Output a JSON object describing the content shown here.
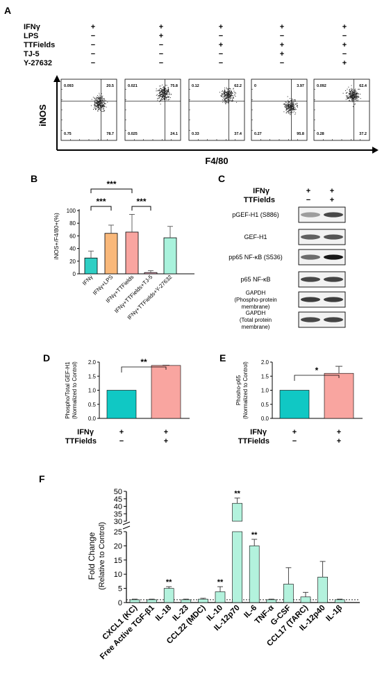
{
  "panels": {
    "A": {
      "label": "A",
      "treatments": [
        "IFNγ",
        "LPS",
        "TTFields",
        "TJ-5",
        "Y-27632"
      ],
      "signs": [
        [
          "+",
          "−",
          "−",
          "−",
          "−"
        ],
        [
          "+",
          "+",
          "−",
          "−",
          "−"
        ],
        [
          "+",
          "−",
          "+",
          "−",
          "−"
        ],
        [
          "+",
          "−",
          "+",
          "+",
          "−"
        ],
        [
          "+",
          "−",
          "+",
          "−",
          "+"
        ]
      ],
      "ylabel": "iNOS",
      "xlabel": "F4/80",
      "plots": [
        {
          "q": [
            "0.093",
            "20.5",
            "0.75",
            "78.7"
          ]
        },
        {
          "q": [
            "0.021",
            "75.8",
            "0.025",
            "24.1"
          ]
        },
        {
          "q": [
            "0.12",
            "62.2",
            "0.33",
            "37.4"
          ]
        },
        {
          "q": [
            "0",
            "3.97",
            "0.27",
            "95.8"
          ]
        },
        {
          "q": [
            "0.092",
            "62.4",
            "0.28",
            "37.2"
          ]
        }
      ]
    },
    "B": {
      "label": "B",
      "ylabel": "iNOS+/F4/80+(%)",
      "sig": [
        "***",
        "***",
        "***"
      ],
      "chart_data": {
        "type": "bar",
        "categories": [
          "IFNγ",
          "IFNγ+LPS",
          "IFNγ+TTFields",
          "IFNγ+TTFields+TJ-5",
          "IFNγ+TTFields+Y-27632"
        ],
        "values": [
          25,
          64,
          66,
          2,
          57
        ],
        "errors": [
          11,
          13,
          28,
          3,
          18
        ],
        "colors": [
          "#2ecfc4",
          "#f9b87a",
          "#f9a5a0",
          "#f3b6c8",
          "#a9f2dc"
        ],
        "yticks": [
          "0",
          "20",
          "40",
          "60",
          "80",
          "100"
        ],
        "ylim": [
          0,
          100
        ]
      }
    },
    "C": {
      "label": "C",
      "treatments": [
        "IFNγ",
        "TTFields"
      ],
      "signs": [
        [
          "+",
          "−"
        ],
        [
          "+",
          "+"
        ]
      ],
      "bands": [
        "pGEF-H1 (S886)",
        "GEF-H1",
        "pp65 NF-κB  (S536)",
        "p65 NF-κB",
        "GAPDH\n(Phospho-protein\nmembrane)",
        "GAPDH\n(Total protein\nmembrane)"
      ]
    },
    "D": {
      "label": "D",
      "ylabel": [
        "Phospho/Total GEF-H1",
        "(Normalized to Control)"
      ],
      "sig": "**",
      "treatments": [
        "IFNγ",
        "TTFields"
      ],
      "signs": [
        [
          "+",
          "−"
        ],
        [
          "+",
          "+"
        ]
      ],
      "chart_data": {
        "type": "bar",
        "values": [
          1.0,
          1.88
        ],
        "errors": [
          0,
          0.01
        ],
        "colors": [
          "#10c8c4",
          "#f9a5a0"
        ],
        "yticks": [
          "0.0",
          "0.5",
          "1.0",
          "1.5",
          "2.0"
        ],
        "ylim": [
          0,
          2.0
        ]
      }
    },
    "E": {
      "label": "E",
      "ylabel": [
        "Phosho-p65",
        "(Normalized to Control)"
      ],
      "sig": "*",
      "treatments": [
        "IFNγ",
        "TTFields"
      ],
      "signs": [
        [
          "+",
          "−"
        ],
        [
          "+",
          "+"
        ]
      ],
      "chart_data": {
        "type": "bar",
        "values": [
          1.0,
          1.6
        ],
        "errors": [
          0,
          0.25
        ],
        "colors": [
          "#10c8c4",
          "#f9a5a0"
        ],
        "yticks": [
          "0.0",
          "0.5",
          "1.0",
          "1.5",
          "2.0"
        ],
        "ylim": [
          0,
          2.0
        ]
      }
    },
    "F": {
      "label": "F",
      "ylabel": [
        "Fold Change",
        "(Relative to Control)"
      ],
      "chart_data": {
        "type": "bar",
        "categories": [
          "CXCL1 (KC)",
          "Free Active TGF-β1",
          "IL-18",
          "IL-23",
          "CCL22 (MDC)",
          "IL-10",
          "IL-12p70",
          "IL-6",
          "TNF-α",
          "G-CSF",
          "CCL17 (TARC)",
          "IL-12p40",
          "IL-1β"
        ],
        "values": [
          1.0,
          1.0,
          5.0,
          1.0,
          1.2,
          3.8,
          42,
          20,
          1.0,
          6.5,
          2.0,
          9.0,
          1.0
        ],
        "errors": [
          0.2,
          0.2,
          0.6,
          0.2,
          0.3,
          1.8,
          3.5,
          2.3,
          0.2,
          5.8,
          1.6,
          5.5,
          0.2
        ],
        "sig": [
          "",
          "",
          "**",
          "",
          "",
          "**",
          "**",
          "**",
          "",
          "",
          "",
          "",
          ""
        ],
        "color": "#b3f2dd",
        "yticks_lower": [
          "0",
          "5",
          "10",
          "15",
          "20",
          "25"
        ],
        "yticks_upper": [
          "30",
          "35",
          "40",
          "45",
          "50"
        ],
        "axis_break": [
          25,
          30
        ],
        "ylim": [
          0,
          50
        ]
      }
    }
  }
}
